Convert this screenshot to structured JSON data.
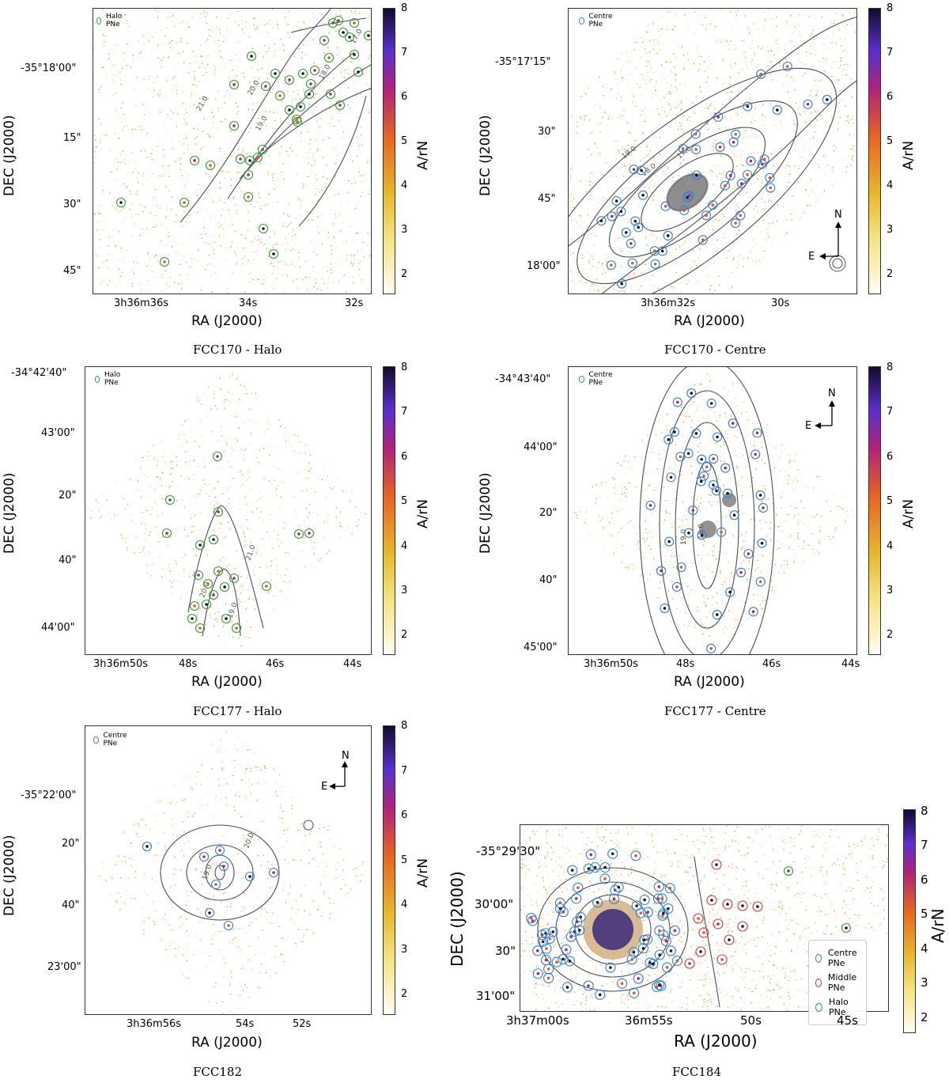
{
  "colorbar": {
    "label": "A/rN",
    "ticks": [
      "8",
      "7",
      "6",
      "5",
      "4",
      "3",
      "2"
    ],
    "range": [
      1.5,
      8
    ]
  },
  "colors": {
    "centre": "#2f7fd8",
    "middle": "#e03030",
    "halo": "#2aa02a",
    "contour": "#4a4f57"
  },
  "panels": [
    {
      "id": "fcc170-halo",
      "caption": "FCC170 - Halo",
      "legend": "Halo PNe",
      "legend_color": "#2aa02a",
      "xlabel": "RA (J2000)",
      "ylabel": "DEC (J2000)",
      "xticks": [
        "3h36m36s",
        "34s",
        "32s"
      ],
      "yticks": [
        "-35°18'00\"",
        "15\"",
        "30\"",
        "45\""
      ],
      "contour_labels": [
        "21.0",
        "20.0",
        "19.0",
        "18.0",
        "17.0"
      ],
      "pne_count": 40
    },
    {
      "id": "fcc170-centre",
      "caption": "FCC170 - Centre",
      "legend": "Centre PNe",
      "legend_color": "#2f7fd8",
      "xlabel": "RA (J2000)",
      "ylabel": "DEC (J2000)",
      "xticks": [
        "3h36m32s",
        "30s"
      ],
      "yticks": [
        "-35°17'15\"",
        "30\"",
        "45\"",
        "18'00\""
      ],
      "contour_labels": [
        "19.0",
        "18.0",
        "17.0"
      ],
      "compass": {
        "n": "N",
        "e": "E"
      },
      "pne_count": 60
    },
    {
      "id": "fcc177-halo",
      "caption": "FCC177 - Halo",
      "legend": "Halo PNe",
      "legend_color": "#2aa02a",
      "xlabel": "RA (J2000)",
      "ylabel": "DEC (J2000)",
      "xticks": [
        "3h36m50s",
        "48s",
        "46s",
        "44s"
      ],
      "yticks": [
        "-34°42'40\"",
        "43'00\"",
        "20\"",
        "40\"",
        "44'00\""
      ],
      "contour_labels": [
        "21.0",
        "20.0",
        "19.0"
      ],
      "pne_count": 21
    },
    {
      "id": "fcc177-centre",
      "caption": "FCC177 - Centre",
      "legend": "Centre PNe",
      "legend_color": "#2f7fd8",
      "xlabel": "RA (J2000)",
      "ylabel": "DEC (J2000)",
      "xticks": [
        "3h36m50s",
        "48s",
        "46s",
        "44s"
      ],
      "yticks": [
        "-34°43'40\"",
        "44'00\"",
        "20\"",
        "40\"",
        "45'00\""
      ],
      "contour_labels": [
        "19.0",
        "18.0"
      ],
      "compass": {
        "n": "N",
        "e": "E"
      },
      "pne_count": 55
    },
    {
      "id": "fcc182",
      "caption": "FCC182",
      "legend": "Centre PNe",
      "legend_color": "#2f7fd8",
      "xlabel": "RA (J2000)",
      "ylabel": "DEC (J2000)",
      "xticks": [
        "3h36m56s",
        "54s",
        "52s"
      ],
      "yticks": [
        "-35°22'00\"",
        "20\"",
        "40\"",
        "23'00\""
      ],
      "contour_labels": [
        "20.0",
        "19.0"
      ],
      "compass": {
        "n": "N",
        "e": "E"
      },
      "pne_count": 9
    },
    {
      "id": "fcc184",
      "caption": "FCC184",
      "legend_entries": [
        {
          "label": "Centre PNe",
          "color": "#2f7fd8"
        },
        {
          "label": "Middle PNe",
          "color": "#e03030"
        },
        {
          "label": "Halo PNe",
          "color": "#2aa02a"
        }
      ],
      "xlabel": "RA (J2000)",
      "ylabel": "DEC (J2000)",
      "xticks": [
        "3h37m00s",
        "36m55s",
        "50s",
        "45s"
      ],
      "yticks": [
        "-35°29'30\"",
        "30'00\"",
        "30\"",
        "31'00\""
      ],
      "pne_count": 75
    }
  ]
}
